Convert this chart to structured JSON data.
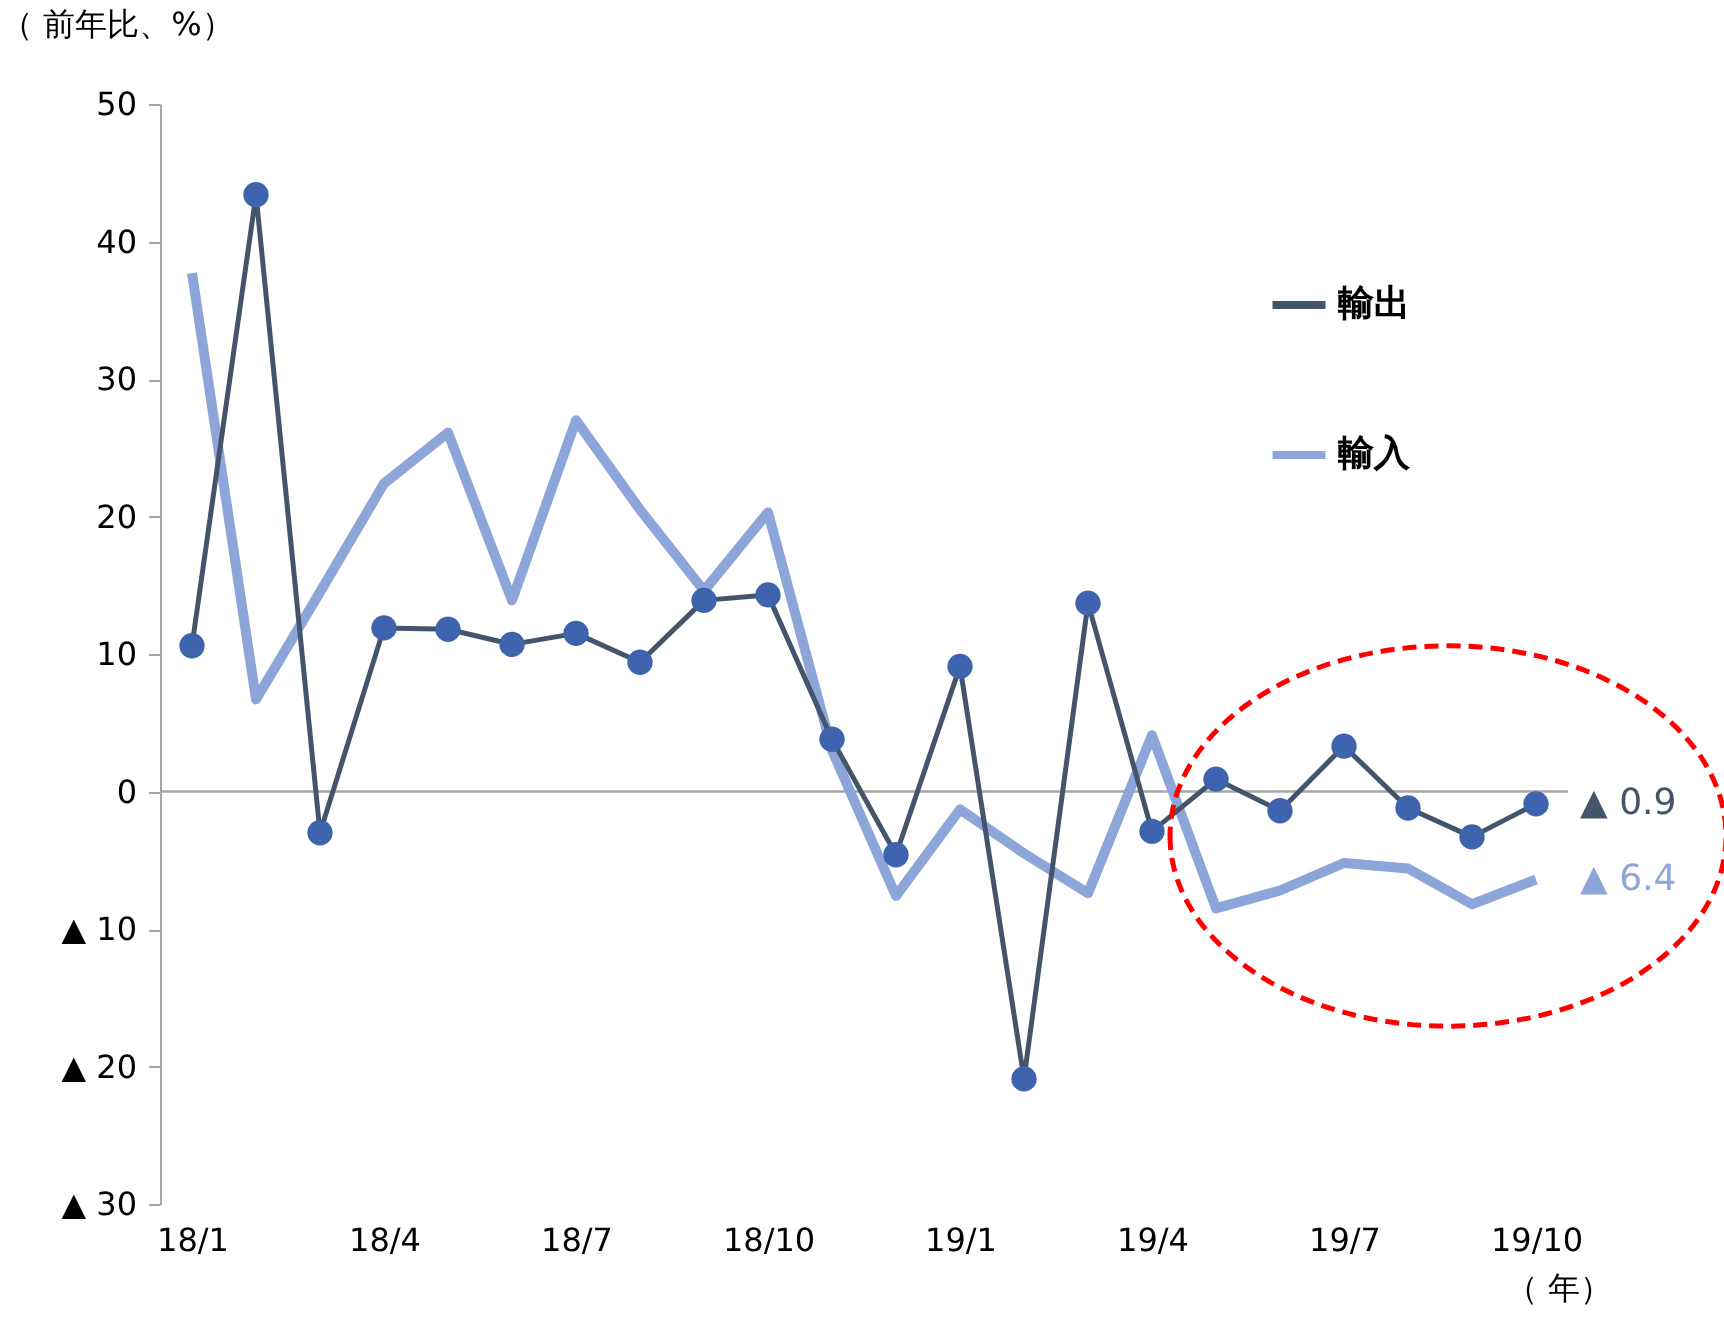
{
  "chart_data": {
    "type": "line",
    "ylabel": "（ 前年比、%）",
    "xlabel": "（ 年）",
    "categories": [
      "18/1",
      null,
      null,
      "18/4",
      null,
      null,
      "18/7",
      null,
      null,
      "18/10",
      null,
      null,
      "19/1",
      null,
      null,
      "19/4",
      null,
      null,
      "19/7",
      null,
      null,
      "19/10"
    ],
    "series": [
      {
        "name": "輸入",
        "color": "#8ea5d9",
        "marker": "none",
        "values": [
          37.7,
          6.7,
          14.5,
          22.4,
          26.1,
          13.9,
          27.0,
          20.5,
          14.6,
          20.3,
          3.0,
          -7.6,
          -1.3,
          -4.5,
          -7.4,
          4.1,
          -8.5,
          -7.2,
          -5.2,
          -5.6,
          -8.2,
          -6.4
        ]
      },
      {
        "name": "輸出",
        "color": "#44546a",
        "marker": "circle",
        "values": [
          10.6,
          43.4,
          -3.0,
          11.9,
          11.8,
          10.7,
          11.5,
          9.4,
          13.9,
          14.3,
          3.8,
          -4.6,
          9.1,
          -20.9,
          13.7,
          -2.9,
          0.9,
          -1.4,
          3.3,
          -1.2,
          -3.3,
          -0.9
        ]
      }
    ],
    "ylim": [
      -30,
      50
    ],
    "yticks": [
      {
        "value": -30,
        "label": "▲ 30"
      },
      {
        "value": -20,
        "label": "▲ 20"
      },
      {
        "value": -10,
        "label": "▲ 10"
      },
      0,
      10,
      20,
      30,
      40,
      50
    ],
    "ref_lines": [
      {
        "axis": "y",
        "value": 0,
        "color": "#a6a6a6"
      }
    ],
    "annotations": [
      {
        "text": "▲ 6.4",
        "x": "19/10",
        "y": -6.4
      },
      {
        "text": "▲ 0.9",
        "x": "19/10",
        "y": -0.9
      }
    ],
    "legend": "top right",
    "grid": false
  }
}
